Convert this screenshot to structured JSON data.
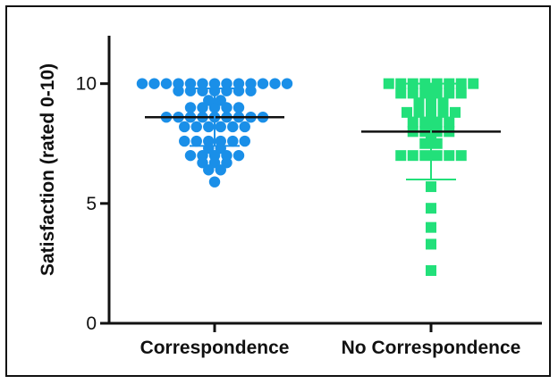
{
  "chart_data": {
    "type": "scatter",
    "subtype": "dot-plot",
    "ylabel": "Satisfaction (rated 0-10)",
    "xlabel": "",
    "ylim": [
      0,
      12
    ],
    "yticks": [
      0,
      5,
      10
    ],
    "ytick_labels": [
      "0",
      "5",
      "10"
    ],
    "grid": false,
    "legend": "none",
    "categories": [
      "Correspondence",
      "No Correspondence"
    ],
    "series": [
      {
        "category": "Correspondence",
        "marker": "circle",
        "color": "#1a8fe8",
        "mean": 8.6,
        "sd_upper": 9.8,
        "sd_lower": 7.4,
        "values": [
          10,
          10,
          10,
          10,
          10,
          10,
          10,
          10,
          10,
          10,
          10,
          10,
          10,
          9.7,
          9.7,
          9.7,
          9.7,
          9.7,
          9.7,
          9.7,
          9.3,
          9.3,
          9.0,
          9.0,
          9.0,
          9.0,
          9.0,
          8.6,
          8.6,
          8.6,
          8.6,
          8.6,
          8.6,
          8.6,
          8.6,
          8.6,
          8.2,
          8.2,
          8.2,
          8.2,
          8.2,
          8.2,
          7.6,
          7.6,
          7.6,
          7.6,
          7.6,
          7.6,
          7.3,
          7.3,
          7.0,
          7.0,
          7.0,
          7.0,
          7.0,
          6.7,
          6.7,
          6.7,
          6.4,
          6.4,
          5.9
        ]
      },
      {
        "category": "No Correspondence",
        "marker": "square",
        "color": "#22e07a",
        "mean": 8.0,
        "sd_upper": 10.0,
        "sd_lower": 6.0,
        "values": [
          10,
          10,
          10,
          10,
          10,
          10,
          10,
          10,
          9.6,
          9.6,
          9.6,
          9.6,
          9.6,
          9.6,
          9.2,
          9.2,
          9.2,
          8.8,
          8.8,
          8.8,
          8.8,
          8.8,
          8.4,
          8.4,
          8.4,
          8.4,
          8.0,
          8.0,
          8.0,
          8.0,
          7.8,
          7.5,
          7.5,
          7.0,
          7.0,
          7.0,
          7.0,
          7.0,
          7.0,
          5.7,
          4.8,
          4.0,
          3.3,
          2.2
        ]
      }
    ]
  }
}
